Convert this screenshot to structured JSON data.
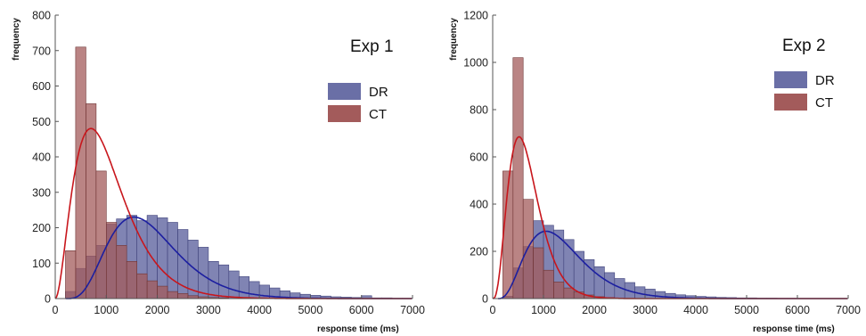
{
  "chart_data": [
    {
      "type": "histogram",
      "title": "Exp 1",
      "xlabel": "response time (ms)",
      "ylabel": "frequency",
      "xlim": [
        0,
        7000
      ],
      "ylim": [
        0,
        800
      ],
      "xticks": [
        0,
        1000,
        2000,
        3000,
        4000,
        5000,
        6000,
        7000
      ],
      "yticks": [
        0,
        100,
        200,
        300,
        400,
        500,
        600,
        700,
        800
      ],
      "legend_position": "top-right",
      "series": [
        {
          "name": "DR",
          "color": "#6a6fa6",
          "curve_color": "#1c1fa0",
          "bins": [
            {
              "x0": 200,
              "x1": 400,
              "value": 20
            },
            {
              "x0": 400,
              "x1": 600,
              "value": 85
            },
            {
              "x0": 600,
              "x1": 800,
              "value": 120
            },
            {
              "x0": 800,
              "x1": 1000,
              "value": 150
            },
            {
              "x0": 1000,
              "x1": 1200,
              "value": 210
            },
            {
              "x0": 1200,
              "x1": 1400,
              "value": 225
            },
            {
              "x0": 1400,
              "x1": 1600,
              "value": 235
            },
            {
              "x0": 1600,
              "x1": 1800,
              "value": 220
            },
            {
              "x0": 1800,
              "x1": 2000,
              "value": 235
            },
            {
              "x0": 2000,
              "x1": 2200,
              "value": 228
            },
            {
              "x0": 2200,
              "x1": 2400,
              "value": 215
            },
            {
              "x0": 2400,
              "x1": 2600,
              "value": 195
            },
            {
              "x0": 2600,
              "x1": 2800,
              "value": 165
            },
            {
              "x0": 2800,
              "x1": 3000,
              "value": 145
            },
            {
              "x0": 3000,
              "x1": 3200,
              "value": 105
            },
            {
              "x0": 3200,
              "x1": 3400,
              "value": 95
            },
            {
              "x0": 3400,
              "x1": 3600,
              "value": 78
            },
            {
              "x0": 3600,
              "x1": 3800,
              "value": 62
            },
            {
              "x0": 3800,
              "x1": 4000,
              "value": 48
            },
            {
              "x0": 4000,
              "x1": 4200,
              "value": 38
            },
            {
              "x0": 4200,
              "x1": 4400,
              "value": 30
            },
            {
              "x0": 4400,
              "x1": 4600,
              "value": 22
            },
            {
              "x0": 4600,
              "x1": 4800,
              "value": 16
            },
            {
              "x0": 4800,
              "x1": 5000,
              "value": 12
            },
            {
              "x0": 5000,
              "x1": 5200,
              "value": 9
            },
            {
              "x0": 5200,
              "x1": 5400,
              "value": 7
            },
            {
              "x0": 5400,
              "x1": 5600,
              "value": 5
            },
            {
              "x0": 5600,
              "x1": 5800,
              "value": 4
            },
            {
              "x0": 5800,
              "x1": 6000,
              "value": 3
            },
            {
              "x0": 6000,
              "x1": 6200,
              "value": 8
            },
            {
              "x0": 6200,
              "x1": 6400,
              "value": 2
            },
            {
              "x0": 6400,
              "x1": 6600,
              "value": 2
            },
            {
              "x0": 6600,
              "x1": 6800,
              "value": 1
            },
            {
              "x0": 6800,
              "x1": 7000,
              "value": 1
            }
          ],
          "fit": {
            "kind": "gamma",
            "shape": 5,
            "mode": 1540,
            "peak": 230,
            "start": 200
          }
        },
        {
          "name": "CT",
          "color": "#a35b5b",
          "curve_color": "#c8161c",
          "bins": [
            {
              "x0": 200,
              "x1": 400,
              "value": 135
            },
            {
              "x0": 400,
              "x1": 600,
              "value": 710
            },
            {
              "x0": 600,
              "x1": 800,
              "value": 550
            },
            {
              "x0": 800,
              "x1": 1000,
              "value": 360
            },
            {
              "x0": 1000,
              "x1": 1200,
              "value": 215
            },
            {
              "x0": 1200,
              "x1": 1400,
              "value": 150
            },
            {
              "x0": 1400,
              "x1": 1600,
              "value": 105
            },
            {
              "x0": 1600,
              "x1": 1800,
              "value": 70
            },
            {
              "x0": 1800,
              "x1": 2000,
              "value": 50
            },
            {
              "x0": 2000,
              "x1": 2200,
              "value": 35
            },
            {
              "x0": 2200,
              "x1": 2400,
              "value": 20
            },
            {
              "x0": 2400,
              "x1": 2600,
              "value": 14
            },
            {
              "x0": 2600,
              "x1": 2800,
              "value": 8
            },
            {
              "x0": 2800,
              "x1": 3000,
              "value": 5
            },
            {
              "x0": 3000,
              "x1": 3200,
              "value": 3
            },
            {
              "x0": 3200,
              "x1": 3400,
              "value": 2
            }
          ],
          "fit": {
            "kind": "gamma",
            "shape": 3,
            "mode": 700,
            "peak": 480,
            "start": 0
          }
        }
      ]
    },
    {
      "type": "histogram",
      "title": "Exp 2",
      "xlabel": "response time (ms)",
      "ylabel": "frequency",
      "xlim": [
        0,
        7000
      ],
      "ylim": [
        0,
        1200
      ],
      "xticks": [
        0,
        1000,
        2000,
        3000,
        4000,
        5000,
        6000,
        7000
      ],
      "yticks": [
        0,
        200,
        400,
        600,
        800,
        1000,
        1200
      ],
      "legend_position": "top-right",
      "series": [
        {
          "name": "DR",
          "color": "#6a6fa6",
          "curve_color": "#1c1fa0",
          "bins": [
            {
              "x0": 200,
              "x1": 400,
              "value": 10
            },
            {
              "x0": 400,
              "x1": 600,
              "value": 130
            },
            {
              "x0": 600,
              "x1": 800,
              "value": 220
            },
            {
              "x0": 800,
              "x1": 1000,
              "value": 330
            },
            {
              "x0": 1000,
              "x1": 1200,
              "value": 310
            },
            {
              "x0": 1200,
              "x1": 1400,
              "value": 290
            },
            {
              "x0": 1400,
              "x1": 1600,
              "value": 250
            },
            {
              "x0": 1600,
              "x1": 1800,
              "value": 200
            },
            {
              "x0": 1800,
              "x1": 2000,
              "value": 165
            },
            {
              "x0": 2000,
              "x1": 2200,
              "value": 135
            },
            {
              "x0": 2200,
              "x1": 2400,
              "value": 110
            },
            {
              "x0": 2400,
              "x1": 2600,
              "value": 85
            },
            {
              "x0": 2600,
              "x1": 2800,
              "value": 68
            },
            {
              "x0": 2800,
              "x1": 3000,
              "value": 50
            },
            {
              "x0": 3000,
              "x1": 3200,
              "value": 40
            },
            {
              "x0": 3200,
              "x1": 3400,
              "value": 30
            },
            {
              "x0": 3400,
              "x1": 3600,
              "value": 22
            },
            {
              "x0": 3600,
              "x1": 3800,
              "value": 16
            },
            {
              "x0": 3800,
              "x1": 4000,
              "value": 12
            },
            {
              "x0": 4000,
              "x1": 4200,
              "value": 9
            },
            {
              "x0": 4200,
              "x1": 4400,
              "value": 7
            },
            {
              "x0": 4400,
              "x1": 4600,
              "value": 5
            },
            {
              "x0": 4600,
              "x1": 4800,
              "value": 4
            },
            {
              "x0": 4800,
              "x1": 5000,
              "value": 3
            },
            {
              "x0": 5000,
              "x1": 5200,
              "value": 3
            },
            {
              "x0": 5200,
              "x1": 5400,
              "value": 2
            },
            {
              "x0": 5400,
              "x1": 5600,
              "value": 2
            },
            {
              "x0": 5600,
              "x1": 5800,
              "value": 1
            },
            {
              "x0": 5800,
              "x1": 6000,
              "value": 1
            }
          ],
          "fit": {
            "kind": "gamma",
            "shape": 4,
            "mode": 1050,
            "peak": 285,
            "start": 100
          }
        },
        {
          "name": "CT",
          "color": "#a35b5b",
          "curve_color": "#c8161c",
          "bins": [
            {
              "x0": 200,
              "x1": 400,
              "value": 540
            },
            {
              "x0": 400,
              "x1": 600,
              "value": 1020
            },
            {
              "x0": 600,
              "x1": 800,
              "value": 420
            },
            {
              "x0": 800,
              "x1": 1000,
              "value": 215
            },
            {
              "x0": 1000,
              "x1": 1200,
              "value": 120
            },
            {
              "x0": 1200,
              "x1": 1400,
              "value": 70
            },
            {
              "x0": 1400,
              "x1": 1600,
              "value": 45
            },
            {
              "x0": 1600,
              "x1": 1800,
              "value": 28
            },
            {
              "x0": 1800,
              "x1": 2000,
              "value": 15
            },
            {
              "x0": 2000,
              "x1": 2200,
              "value": 8
            },
            {
              "x0": 2200,
              "x1": 2400,
              "value": 4
            },
            {
              "x0": 2400,
              "x1": 2600,
              "value": 2
            }
          ],
          "fit": {
            "kind": "gamma",
            "shape": 4,
            "mode": 520,
            "peak": 685,
            "start": 0
          }
        }
      ]
    }
  ]
}
